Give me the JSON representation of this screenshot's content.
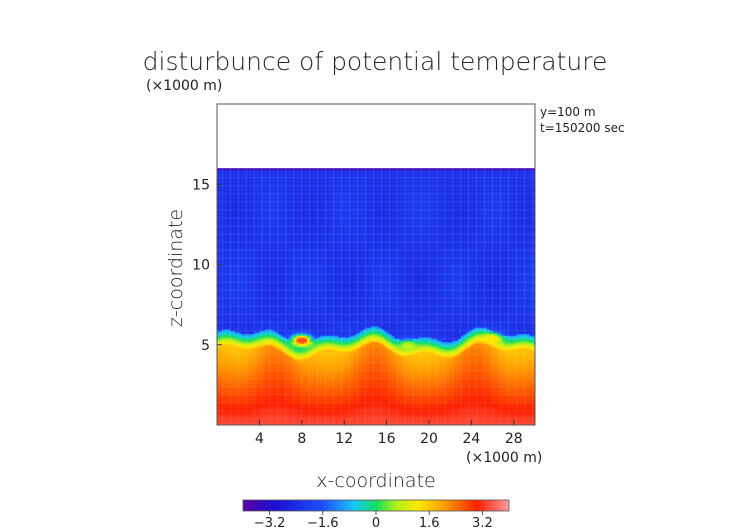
{
  "chart_data": {
    "type": "heatmap",
    "title": "disturbunce of potential temperature",
    "xlabel": "x-coordinate",
    "ylabel": "z-coordinate",
    "x_unit": "(×1000 m)",
    "y_unit": "(×1000 m)",
    "annotations": [
      "y=100 m",
      "t=150200 sec"
    ],
    "xlim": [
      0,
      30
    ],
    "ylim": [
      0,
      20
    ],
    "x_ticks": [
      4,
      8,
      12,
      16,
      20,
      24,
      28
    ],
    "y_ticks": [
      5,
      10,
      15
    ],
    "colorbar": {
      "min": -4,
      "max": 4,
      "ticks": [
        -3.2,
        -1.6,
        0,
        1.6,
        3.2
      ],
      "tick_labels": [
        "−3.2",
        "−1.6",
        "0",
        "1.6",
        "3.2"
      ],
      "colormap": "rainbow-purple-blue-cyan-green-yellow-orange-red-pink"
    },
    "field_summary": {
      "model_top_km": 16.0,
      "upper_layer_value": -2.2,
      "inversion_height_km": 5.0,
      "lower_layer_value_near_5km": 1.8,
      "surface_value": 3.4,
      "warm_bubbles": [
        {
          "x": 8.0,
          "z": 5.3,
          "peak": 3.5
        },
        {
          "x": 18.0,
          "z": 5.0,
          "peak": 0.8
        },
        {
          "x": 26.0,
          "z": 5.4,
          "peak": 1.4
        }
      ]
    }
  }
}
